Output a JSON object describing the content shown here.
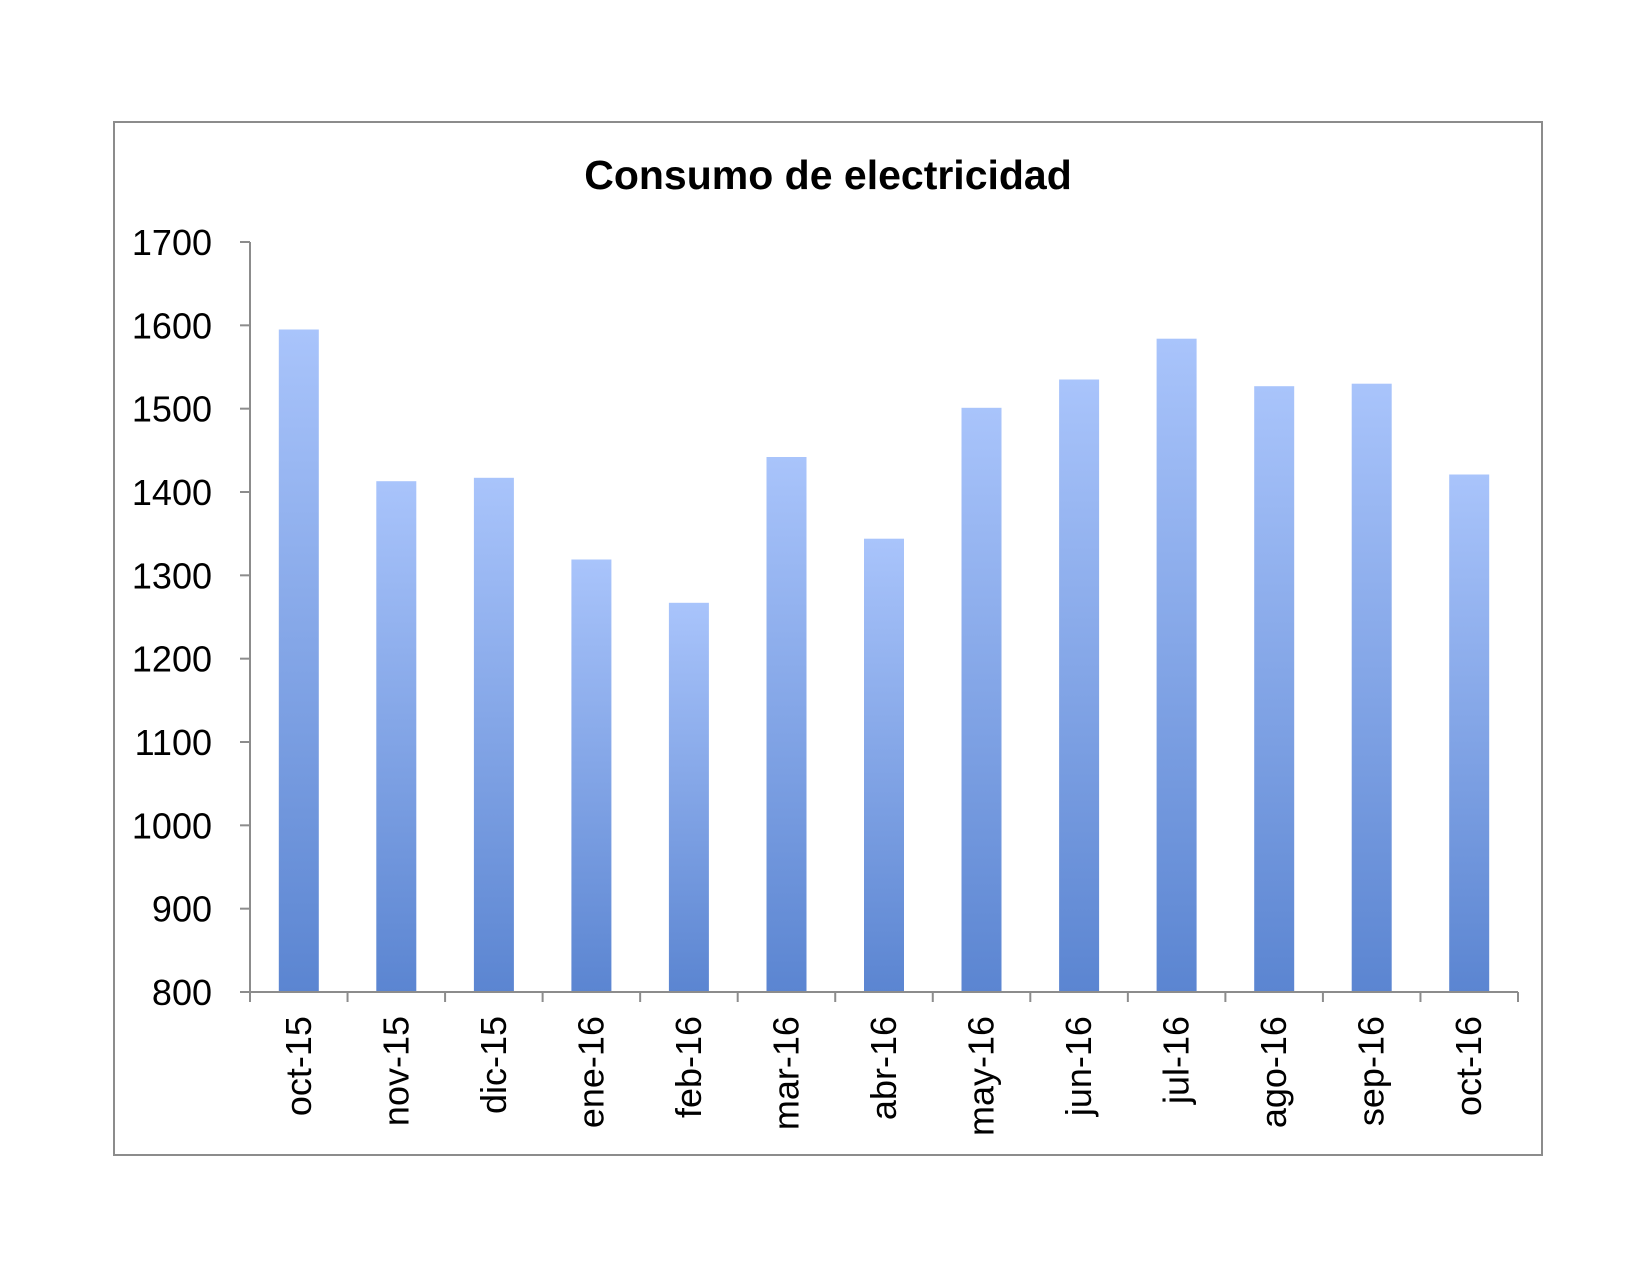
{
  "chart_data": {
    "type": "bar",
    "title": "Consumo de electricidad",
    "xlabel": "",
    "ylabel": "",
    "categories": [
      "oct-15",
      "nov-15",
      "dic-15",
      "ene-16",
      "feb-16",
      "mar-16",
      "abr-16",
      "may-16",
      "jun-16",
      "jul-16",
      "ago-16",
      "sep-16",
      "oct-16"
    ],
    "values": [
      1595,
      1413,
      1417,
      1319,
      1267,
      1442,
      1344,
      1501,
      1535,
      1584,
      1527,
      1530,
      1421
    ],
    "ylim": [
      800,
      1700
    ],
    "yticks": [
      "800",
      "900",
      "1000",
      "1100",
      "1200",
      "1300",
      "1400",
      "1500",
      "1600",
      "1700"
    ],
    "grid": false,
    "legend": "none",
    "colors": {
      "bar_top": "#a9c4fb",
      "bar_bottom": "#5b85d1",
      "axis": "#8c8c8c",
      "frame": "#8c8c8c"
    }
  }
}
